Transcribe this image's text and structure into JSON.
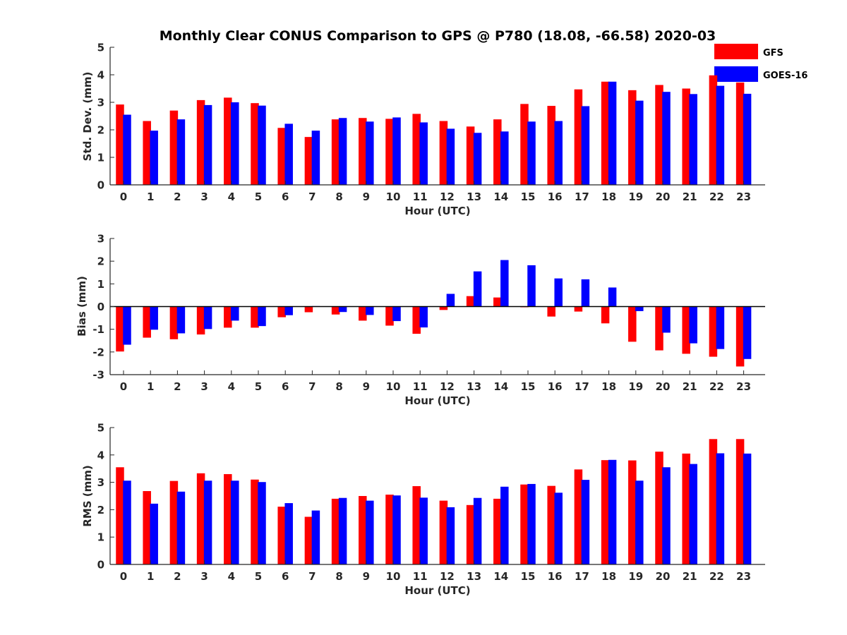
{
  "figure": {
    "title": "Monthly Clear CONUS Comparison to GPS @ P780 (18.08, -66.58) 2020-03"
  },
  "legend": {
    "placement": "top-right",
    "entries": [
      {
        "name": "GFS",
        "color": "#ff0000"
      },
      {
        "name": "GOES-16",
        "color": "#0000ff"
      }
    ]
  },
  "chart_data": [
    {
      "type": "bar",
      "ylabel": "Std. Dev. (mm)",
      "xlabel": "Hour (UTC)",
      "ylim": [
        0,
        5
      ],
      "yticks": [
        0,
        1,
        2,
        3,
        4,
        5
      ],
      "grid": false,
      "categories": [
        "0",
        "1",
        "2",
        "3",
        "4",
        "5",
        "6",
        "7",
        "8",
        "9",
        "10",
        "11",
        "12",
        "13",
        "14",
        "15",
        "16",
        "17",
        "18",
        "19",
        "20",
        "21",
        "22",
        "23"
      ],
      "series": [
        {
          "name": "GFS",
          "color": "#ff0000",
          "values": [
            2.92,
            2.32,
            2.7,
            3.08,
            3.17,
            2.97,
            2.07,
            1.74,
            2.38,
            2.43,
            2.4,
            2.58,
            2.32,
            2.12,
            2.38,
            2.94,
            2.87,
            3.47,
            3.75,
            3.44,
            3.63,
            3.5,
            3.98,
            3.72
          ]
        },
        {
          "name": "GOES-16",
          "color": "#0000ff",
          "values": [
            2.55,
            1.97,
            2.38,
            2.9,
            3.0,
            2.88,
            2.22,
            1.97,
            2.43,
            2.3,
            2.45,
            2.27,
            2.04,
            1.89,
            1.94,
            2.3,
            2.32,
            2.86,
            3.75,
            3.06,
            3.38,
            3.3,
            3.6,
            3.31
          ]
        }
      ]
    },
    {
      "type": "bar",
      "ylabel": "Bias (mm)",
      "xlabel": "Hour (UTC)",
      "ylim": [
        -3,
        3
      ],
      "yticks": [
        -3,
        -2,
        -1,
        0,
        1,
        2,
        3
      ],
      "zero_line": true,
      "grid": false,
      "categories": [
        "0",
        "1",
        "2",
        "3",
        "4",
        "5",
        "6",
        "7",
        "8",
        "9",
        "10",
        "11",
        "12",
        "13",
        "14",
        "15",
        "16",
        "17",
        "18",
        "19",
        "20",
        "21",
        "22",
        "23"
      ],
      "series": [
        {
          "name": "GFS",
          "color": "#ff0000",
          "values": [
            -1.98,
            -1.37,
            -1.44,
            -1.23,
            -0.93,
            -0.93,
            -0.47,
            -0.25,
            -0.35,
            -0.62,
            -0.84,
            -1.2,
            -0.15,
            0.46,
            0.4,
            -0.03,
            -0.44,
            -0.22,
            -0.74,
            -1.55,
            -1.93,
            -2.08,
            -2.21,
            -2.64
          ]
        },
        {
          "name": "GOES-16",
          "color": "#0000ff",
          "values": [
            -1.68,
            -1.02,
            -1.18,
            -0.99,
            -0.62,
            -0.86,
            -0.38,
            0.02,
            -0.24,
            -0.37,
            -0.64,
            -0.92,
            0.56,
            1.55,
            2.05,
            1.82,
            1.24,
            1.2,
            0.84,
            -0.2,
            -1.15,
            -1.62,
            -1.87,
            -2.31
          ]
        }
      ]
    },
    {
      "type": "bar",
      "ylabel": "RMS (mm)",
      "xlabel": "Hour (UTC)",
      "ylim": [
        0,
        5
      ],
      "yticks": [
        0,
        1,
        2,
        3,
        4,
        5
      ],
      "grid": false,
      "categories": [
        "0",
        "1",
        "2",
        "3",
        "4",
        "5",
        "6",
        "7",
        "8",
        "9",
        "10",
        "11",
        "12",
        "13",
        "14",
        "15",
        "16",
        "17",
        "18",
        "19",
        "20",
        "21",
        "22",
        "23"
      ],
      "series": [
        {
          "name": "GFS",
          "color": "#ff0000",
          "values": [
            3.55,
            2.68,
            3.05,
            3.33,
            3.3,
            3.1,
            2.11,
            1.74,
            2.4,
            2.5,
            2.55,
            2.86,
            2.33,
            2.17,
            2.4,
            2.92,
            2.87,
            3.47,
            3.81,
            3.8,
            4.12,
            4.05,
            4.58,
            4.58
          ]
        },
        {
          "name": "GOES-16",
          "color": "#0000ff",
          "values": [
            3.06,
            2.22,
            2.66,
            3.06,
            3.06,
            3.01,
            2.24,
            1.97,
            2.43,
            2.33,
            2.52,
            2.44,
            2.09,
            2.43,
            2.84,
            2.94,
            2.62,
            3.09,
            3.82,
            3.06,
            3.55,
            3.67,
            4.06,
            4.05
          ]
        }
      ]
    }
  ]
}
